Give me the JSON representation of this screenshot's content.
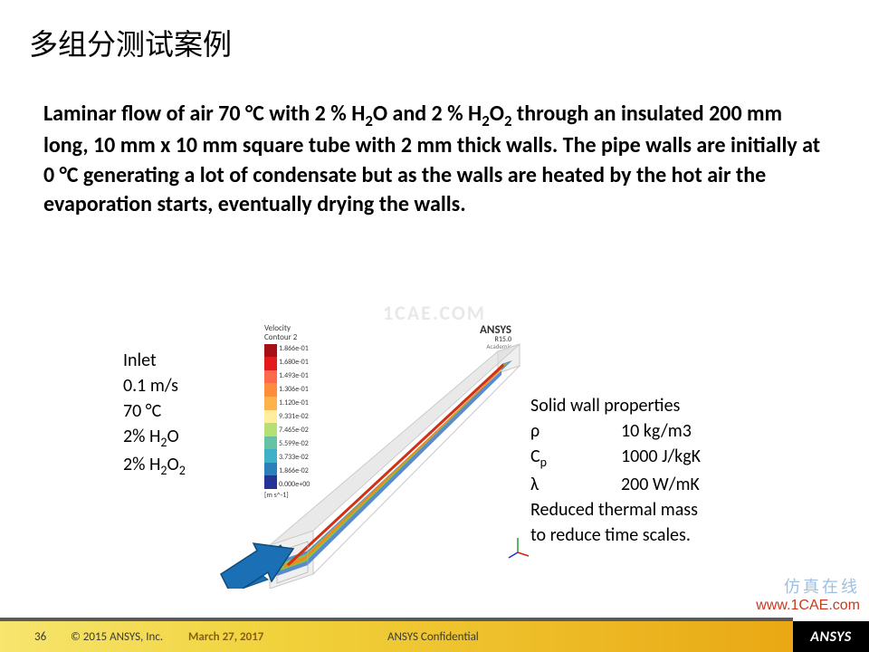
{
  "title": "多组分测试案例",
  "body_html": "Laminar flow of air 70 °C with 2 % H<sub>2</sub>O and 2 % H<sub>2</sub>O<sub>2</sub> through an insulated 200 mm long, 10 mm x 10 mm square tube with 2 mm thick walls. The pipe walls are initially at 0 °C generating a lot of condensate but as the walls are heated by the hot air the evaporation starts, eventually drying the walls.",
  "watermark_top": "1CAE.COM",
  "inlet": {
    "heading": "Inlet",
    "lines": [
      "0.1 m/s",
      "70 °C",
      "2% H<sub>2</sub>O",
      "2% H<sub>2</sub>O<sub>2</sub>"
    ]
  },
  "wall": {
    "heading": "Solid wall properties",
    "rows": [
      {
        "sym": "ρ",
        "val": "10 kg/m3"
      },
      {
        "sym": "C<sub>p</sub>",
        "val": "1000 J/kgK"
      },
      {
        "sym": "λ",
        "val": "200 W/mK"
      }
    ],
    "note1": "Reduced thermal mass",
    "note2": "to reduce time scales."
  },
  "legend": {
    "title1": "Velocity",
    "title2": "Contour 2",
    "unit": "[m s^-1]",
    "colors": [
      "#a50f15",
      "#e31a1c",
      "#fb6a4a",
      "#fd8d3c",
      "#feb24c",
      "#ffeda0",
      "#b6e076",
      "#66c2a5",
      "#3eb1c8",
      "#2c7fb8",
      "#253494"
    ],
    "labels": [
      "1.866e-01",
      "1.680e-01",
      "1.493e-01",
      "1.306e-01",
      "1.120e-01",
      "9.331e-02",
      "7.465e-02",
      "5.599e-02",
      "3.733e-02",
      "1.866e-02",
      "0.000e+00"
    ]
  },
  "sim_brand": {
    "big": "ANSYS",
    "ver": "R15.0",
    "sub": "Academic"
  },
  "tube": {
    "arrow_color": "#1b6fb5",
    "wall_outline": "#c7c7c7",
    "wall_fill": "#efefef",
    "face_top": "#dcdcdc",
    "core_colors": {
      "center": "#d13015",
      "mid": "#f08a1e",
      "outer": "#7ec84a",
      "edge": "#4a7ec8"
    }
  },
  "triad_colors": {
    "x": "#d02020",
    "y": "#20a030",
    "z": "#2030d0"
  },
  "footer": {
    "page": "36",
    "copy": "© 2015 ANSYS, Inc.",
    "date": "March 27, 2017",
    "conf": "ANSYS Confidential",
    "logo": "ANSYS"
  },
  "overlay": {
    "cn": "仿真在线",
    "en": "www.1CAE.com"
  }
}
